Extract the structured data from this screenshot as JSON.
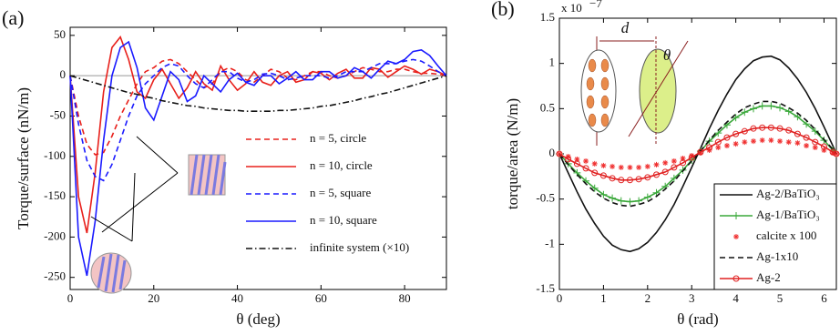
{
  "chart_data": [
    {
      "type": "line",
      "panel_label": "(a)",
      "x_label": "θ (deg)",
      "y_label": "Torque/surface (nN/m)",
      "xlim": [
        0,
        90
      ],
      "xticks": [
        0,
        20,
        40,
        60,
        80
      ],
      "ylim": [
        -265,
        60
      ],
      "yticks": [
        -250,
        -200,
        -150,
        -100,
        -50,
        0,
        50
      ],
      "zero_line": true,
      "legend": "lower right",
      "legend_frame": false,
      "x": [
        0,
        2,
        4,
        6,
        8,
        10,
        12,
        14,
        16,
        18,
        20,
        22,
        24,
        26,
        28,
        30,
        32,
        34,
        36,
        38,
        40,
        42,
        44,
        46,
        48,
        50,
        52,
        54,
        56,
        58,
        60,
        62,
        64,
        66,
        68,
        70,
        72,
        74,
        76,
        78,
        80,
        82,
        84,
        86,
        88,
        90
      ],
      "series": [
        {
          "name": "n = 5, circle",
          "color": "#e8201b",
          "dash": "dashed",
          "values": [
            0,
            -50,
            -85,
            -98,
            -95,
            -75,
            -50,
            -30,
            -10,
            5,
            10,
            18,
            20,
            15,
            5,
            -5,
            -15,
            -10,
            5,
            10,
            5,
            -5,
            -8,
            0,
            8,
            5,
            -3,
            -5,
            0,
            5,
            5,
            0,
            -3,
            0,
            5,
            10,
            8,
            5,
            5,
            8,
            8,
            5,
            3,
            3,
            2,
            0
          ]
        },
        {
          "name": "n = 10, circle",
          "color": "#e8201b",
          "dash": "solid",
          "values": [
            0,
            -150,
            -195,
            -120,
            -20,
            35,
            48,
            20,
            -20,
            -28,
            -5,
            8,
            -10,
            -28,
            -15,
            5,
            -10,
            -18,
            12,
            -5,
            -18,
            -10,
            5,
            -8,
            -12,
            0,
            5,
            -8,
            -5,
            5,
            3,
            -5,
            3,
            8,
            -3,
            -3,
            10,
            8,
            -2,
            5,
            12,
            8,
            2,
            8,
            5,
            0
          ]
        },
        {
          "name": "n = 5, square",
          "color": "#1a1aff",
          "dash": "dashed",
          "values": [
            0,
            -60,
            -105,
            -125,
            -130,
            -110,
            -80,
            -50,
            -25,
            -10,
            0,
            10,
            15,
            12,
            0,
            -10,
            -15,
            -5,
            5,
            5,
            -3,
            -8,
            -5,
            2,
            3,
            0,
            -5,
            -3,
            0,
            0,
            0,
            -3,
            0,
            5,
            5,
            5,
            10,
            15,
            15,
            15,
            18,
            20,
            18,
            12,
            5,
            0
          ]
        },
        {
          "name": "n = 10, square",
          "color": "#1a1aff",
          "dash": "solid",
          "values": [
            0,
            -200,
            -248,
            -180,
            -80,
            0,
            35,
            42,
            10,
            -40,
            -55,
            -25,
            5,
            -5,
            -32,
            -25,
            0,
            -10,
            -20,
            -5,
            3,
            -8,
            -12,
            0,
            0,
            -10,
            -3,
            5,
            -5,
            -5,
            5,
            5,
            -3,
            0,
            10,
            5,
            -3,
            8,
            18,
            15,
            20,
            30,
            32,
            25,
            12,
            0
          ]
        },
        {
          "name": "infinite system (×10)",
          "color": "#111111",
          "dash": "dashdot",
          "values": [
            0,
            -3,
            -6,
            -9,
            -12,
            -15,
            -18,
            -21,
            -23,
            -26,
            -28,
            -31,
            -33,
            -35,
            -37,
            -38,
            -40,
            -41,
            -42,
            -43,
            -43,
            -44,
            -44,
            -44,
            -44,
            -43,
            -43,
            -42,
            -41,
            -40,
            -38,
            -37,
            -35,
            -33,
            -31,
            -28,
            -26,
            -23,
            -21,
            -18,
            -15,
            -12,
            -9,
            -6,
            -3,
            0
          ]
        }
      ]
    },
    {
      "type": "line",
      "panel_label": "(b)",
      "x_label": "θ (rad)",
      "y_label": "torque/area (N/m)",
      "y_multiplier": "x 10",
      "y_multiplier_exp": "−7",
      "annotations": [
        "d",
        "θ"
      ],
      "xlim": [
        0,
        6.28
      ],
      "xticks": [
        0,
        1,
        2,
        3,
        4,
        5,
        6
      ],
      "ylim": [
        -1.5,
        1.5
      ],
      "yticks": [
        -1.5,
        -1,
        -0.5,
        0,
        0.5,
        1,
        1.5
      ],
      "zero_line": false,
      "legend": "lower right",
      "legend_frame": true,
      "x": [
        0,
        0.2,
        0.4,
        0.6,
        0.8,
        1,
        1.2,
        1.4,
        1.6,
        1.8,
        2,
        2.2,
        2.4,
        2.6,
        2.8,
        3,
        3.2,
        3.4,
        3.6,
        3.8,
        4,
        4.2,
        4.4,
        4.6,
        4.8,
        5,
        5.2,
        5.4,
        5.6,
        5.8,
        6,
        6.2,
        6.28
      ],
      "series": [
        {
          "name": "Ag-2/BaTiO₃",
          "color": "#111111",
          "dash": "solid",
          "marker": "none",
          "values": [
            0,
            -0.21,
            -0.42,
            -0.61,
            -0.77,
            -0.91,
            -1.01,
            -1.06,
            -1.08,
            -1.05,
            -0.98,
            -0.87,
            -0.73,
            -0.56,
            -0.36,
            -0.15,
            0.06,
            0.28,
            0.48,
            0.66,
            0.82,
            0.94,
            1.03,
            1.07,
            1.08,
            1.04,
            0.95,
            0.83,
            0.68,
            0.5,
            0.3,
            0.09,
            0
          ]
        },
        {
          "name": "Ag-1/BaTiO₃",
          "color": "#3aa83a",
          "dash": "solid",
          "marker": "plus",
          "values": [
            0,
            -0.11,
            -0.21,
            -0.3,
            -0.38,
            -0.45,
            -0.49,
            -0.52,
            -0.53,
            -0.52,
            -0.48,
            -0.43,
            -0.36,
            -0.27,
            -0.18,
            -0.07,
            0.03,
            0.14,
            0.23,
            0.32,
            0.4,
            0.46,
            0.5,
            0.53,
            0.53,
            0.51,
            0.47,
            0.41,
            0.33,
            0.25,
            0.15,
            0.04,
            0
          ]
        },
        {
          "name": "calcite x 100",
          "color": "#f03030",
          "dash": "none",
          "marker": "star",
          "values": [
            0,
            -0.03,
            -0.06,
            -0.08,
            -0.11,
            -0.13,
            -0.14,
            -0.15,
            -0.15,
            -0.15,
            -0.14,
            -0.12,
            -0.1,
            -0.08,
            -0.05,
            -0.02,
            0.01,
            0.04,
            0.07,
            0.09,
            0.11,
            0.13,
            0.14,
            0.15,
            0.15,
            0.14,
            0.13,
            0.12,
            0.09,
            0.07,
            0.04,
            0.01,
            0
          ]
        },
        {
          "name": "Ag-1x10",
          "color": "#111111",
          "dash": "dashed",
          "marker": "none",
          "values": [
            0,
            -0.12,
            -0.23,
            -0.33,
            -0.42,
            -0.49,
            -0.54,
            -0.57,
            -0.58,
            -0.56,
            -0.53,
            -0.47,
            -0.39,
            -0.3,
            -0.19,
            -0.08,
            0.03,
            0.15,
            0.26,
            0.35,
            0.44,
            0.51,
            0.55,
            0.58,
            0.58,
            0.56,
            0.51,
            0.45,
            0.37,
            0.27,
            0.16,
            0.05,
            0
          ]
        },
        {
          "name": "Ag-2",
          "color": "#e02020",
          "dash": "solid",
          "marker": "circle",
          "values": [
            0,
            -0.06,
            -0.11,
            -0.16,
            -0.21,
            -0.24,
            -0.27,
            -0.29,
            -0.29,
            -0.28,
            -0.26,
            -0.23,
            -0.2,
            -0.15,
            -0.1,
            -0.04,
            0.02,
            0.07,
            0.13,
            0.18,
            0.22,
            0.25,
            0.28,
            0.29,
            0.29,
            0.28,
            0.26,
            0.22,
            0.18,
            0.13,
            0.08,
            0.02,
            0
          ]
        }
      ]
    }
  ]
}
